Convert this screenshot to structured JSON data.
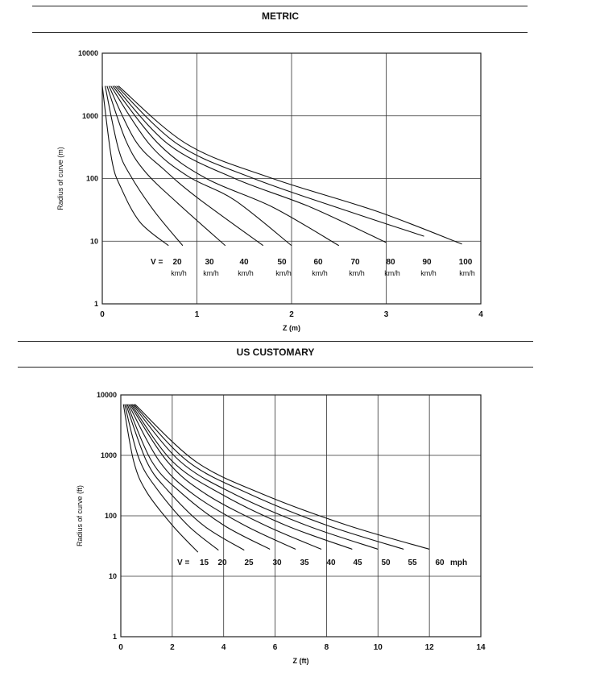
{
  "sections": [
    {
      "title": "METRIC"
    },
    {
      "title": "US CUSTOMARY"
    }
  ],
  "chart_data": [
    {
      "type": "line",
      "title": "METRIC",
      "xlabel": "Z (m)",
      "ylabel": "Radius of curve (m)",
      "xlim": [
        0,
        4
      ],
      "ylim": [
        1,
        10000
      ],
      "yscale": "log",
      "grid": true,
      "x_ticks": [
        "0",
        "1",
        "2",
        "3",
        "4"
      ],
      "y_ticks": [
        "1",
        "10",
        "100",
        "1000",
        "10000"
      ],
      "speed_prefix": "V =",
      "speed_unit": "km/h",
      "series": [
        {
          "name": "20",
          "x": [
            0,
            0.1,
            0.2,
            0.4,
            0.7
          ],
          "y": [
            3000,
            200,
            70,
            20,
            8.5
          ]
        },
        {
          "name": "30",
          "x": [
            0.03,
            0.17,
            0.3,
            0.55,
            0.85
          ],
          "y": [
            3000,
            300,
            110,
            30,
            8.5
          ]
        },
        {
          "name": "40",
          "x": [
            0.05,
            0.25,
            0.45,
            0.8,
            1.3
          ],
          "y": [
            3000,
            400,
            130,
            40,
            8.5
          ]
        },
        {
          "name": "50",
          "x": [
            0.07,
            0.35,
            0.65,
            1.0,
            1.7
          ],
          "y": [
            3000,
            400,
            140,
            50,
            8.5
          ]
        },
        {
          "name": "60",
          "x": [
            0.09,
            0.5,
            0.9,
            1.4,
            2.0
          ],
          "y": [
            3000,
            350,
            110,
            45,
            8.5
          ]
        },
        {
          "name": "70",
          "x": [
            0.11,
            0.6,
            1.1,
            1.8,
            2.5
          ],
          "y": [
            3000,
            350,
            100,
            35,
            8.5
          ]
        },
        {
          "name": "80",
          "x": [
            0.13,
            0.7,
            1.4,
            2.2,
            3.0
          ],
          "y": [
            3000,
            350,
            100,
            35,
            9.5
          ]
        },
        {
          "name": "90",
          "x": [
            0.15,
            0.8,
            1.6,
            2.6,
            3.4
          ],
          "y": [
            3000,
            350,
            100,
            30,
            12
          ]
        },
        {
          "name": "100",
          "x": [
            0.17,
            0.9,
            1.8,
            2.9,
            3.8
          ],
          "y": [
            3000,
            350,
            100,
            30,
            9
          ]
        }
      ]
    },
    {
      "type": "line",
      "title": "US CUSTOMARY",
      "xlabel": "Z (ft)",
      "ylabel": "Radius of curve (ft)",
      "xlim": [
        0,
        14
      ],
      "ylim": [
        1,
        10000
      ],
      "yscale": "log",
      "grid": true,
      "x_ticks": [
        "0",
        "2",
        "4",
        "6",
        "8",
        "10",
        "12",
        "14"
      ],
      "y_ticks": [
        "1",
        "10",
        "100",
        "1000",
        "10000"
      ],
      "speed_prefix": "V =",
      "speed_unit": "mph",
      "series": [
        {
          "name": "15",
          "x": [
            0.1,
            0.5,
            1.0,
            2.0,
            3.0
          ],
          "y": [
            7000,
            800,
            250,
            70,
            25
          ]
        },
        {
          "name": "20",
          "x": [
            0.15,
            0.7,
            1.4,
            2.6,
            3.8
          ],
          "y": [
            7000,
            900,
            280,
            70,
            27
          ]
        },
        {
          "name": "25",
          "x": [
            0.2,
            1.0,
            1.8,
            3.2,
            4.8
          ],
          "y": [
            7000,
            800,
            270,
            70,
            27
          ]
        },
        {
          "name": "30",
          "x": [
            0.25,
            1.2,
            2.3,
            4.0,
            5.8
          ],
          "y": [
            7000,
            800,
            250,
            70,
            28
          ]
        },
        {
          "name": "35",
          "x": [
            0.3,
            1.5,
            2.8,
            4.8,
            6.8
          ],
          "y": [
            7000,
            800,
            230,
            70,
            28
          ]
        },
        {
          "name": "40",
          "x": [
            0.35,
            1.8,
            3.3,
            5.6,
            7.8
          ],
          "y": [
            7000,
            800,
            230,
            70,
            28
          ]
        },
        {
          "name": "45",
          "x": [
            0.4,
            2.0,
            3.9,
            6.4,
            9.0
          ],
          "y": [
            7000,
            800,
            230,
            70,
            28
          ]
        },
        {
          "name": "50",
          "x": [
            0.45,
            2.3,
            4.4,
            7.2,
            10.0
          ],
          "y": [
            7000,
            800,
            230,
            70,
            28
          ]
        },
        {
          "name": "55",
          "x": [
            0.5,
            2.6,
            5.0,
            8.0,
            11.0
          ],
          "y": [
            7000,
            800,
            230,
            70,
            28
          ]
        },
        {
          "name": "60",
          "x": [
            0.55,
            2.9,
            5.5,
            8.8,
            12.0
          ],
          "y": [
            7000,
            800,
            230,
            70,
            28
          ]
        }
      ]
    }
  ]
}
